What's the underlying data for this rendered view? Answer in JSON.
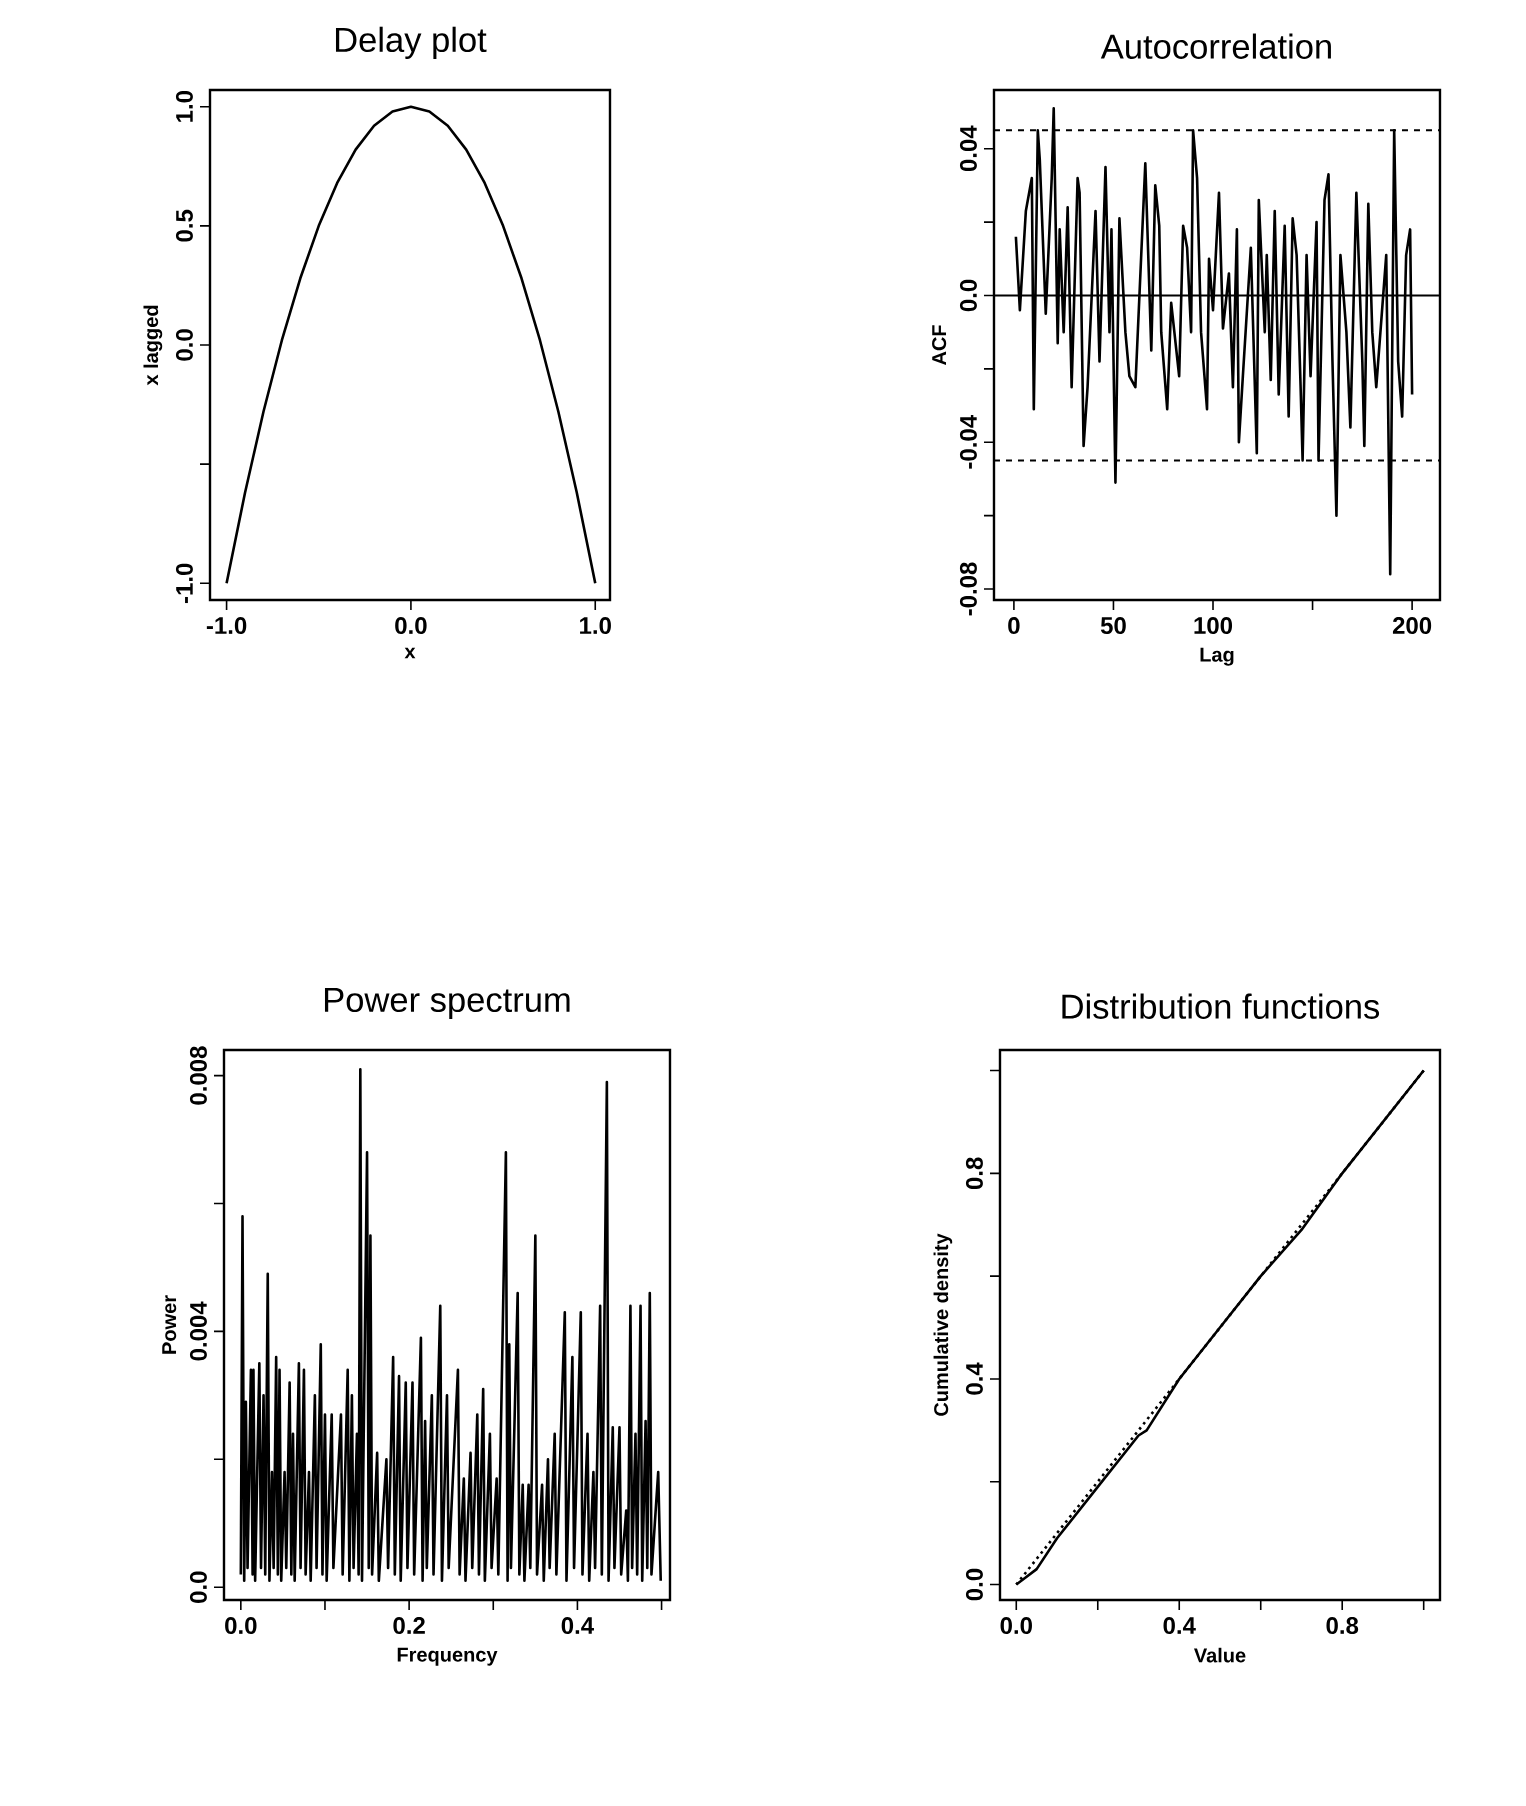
{
  "chart_data": [
    {
      "type": "line",
      "title": "Delay plot",
      "xlabel": "x",
      "ylabel": "x lagged",
      "xlim": [
        -1.09,
        1.08
      ],
      "ylim": [
        -1.07,
        1.07
      ],
      "xticks": [
        {
          "value": -1,
          "label": "-1.0"
        },
        {
          "value": 0,
          "label": "0.0"
        },
        {
          "value": 1,
          "label": "1.0"
        }
      ],
      "yticks": [
        {
          "value": -1,
          "label": "-1.0"
        },
        {
          "value": -0.5,
          "label": null
        },
        {
          "value": 0,
          "label": "0.0"
        },
        {
          "value": 0.5,
          "label": "0.5"
        },
        {
          "value": 1,
          "label": "1.0"
        }
      ],
      "line_style": "solid",
      "series": [
        {
          "color": "#000000",
          "x": [
            -1.0,
            -0.9,
            -0.8,
            -0.7,
            -0.6,
            -0.5,
            -0.4,
            -0.3,
            -0.2,
            -0.1,
            0.0,
            0.1,
            0.2,
            0.3,
            0.4,
            0.5,
            0.6,
            0.7,
            0.8,
            0.9,
            1.0
          ],
          "values": [
            -1.0,
            -0.62,
            -0.28,
            0.02,
            0.28,
            0.5,
            0.68,
            0.82,
            0.92,
            0.98,
            1.0,
            0.98,
            0.92,
            0.82,
            0.68,
            0.5,
            0.28,
            0.02,
            -0.28,
            -0.62,
            -1.0
          ]
        }
      ]
    },
    {
      "type": "line",
      "title": "Autocorrelation",
      "xlabel": "Lag",
      "ylabel": "ACF",
      "xlim": [
        -10,
        214
      ],
      "ylim": [
        -0.083,
        0.056
      ],
      "xticks": [
        0,
        50,
        100,
        {
          "value": 150,
          "label": null
        },
        200
      ],
      "yticks": [
        -0.08,
        {
          "value": -0.06,
          "label": null
        },
        -0.04,
        {
          "value": -0.02,
          "label": null
        },
        {
          "value": 0,
          "label": "0.0"
        },
        {
          "value": 0.02,
          "label": null
        },
        0.04
      ],
      "line_style": "solid",
      "ref_lines": [
        {
          "axis": "y",
          "value": 0.045,
          "line_style": "dashed"
        },
        {
          "axis": "y",
          "value": 0,
          "line_style": "solid"
        },
        {
          "axis": "y",
          "value": -0.045,
          "line_style": "dashed"
        }
      ],
      "series": [
        {
          "color": "#000000",
          "x": [
            1,
            3,
            6,
            9,
            10,
            12,
            13,
            16,
            19,
            20,
            22,
            23,
            25,
            27,
            29,
            32,
            33,
            35,
            37,
            41,
            43,
            46,
            48,
            49,
            51,
            53,
            56,
            58,
            61,
            66,
            69,
            71,
            73,
            74,
            77,
            79,
            83,
            85,
            87,
            89,
            90,
            92,
            94,
            97,
            98,
            100,
            103,
            105,
            108,
            110,
            112,
            113,
            115,
            119,
            122,
            123,
            126,
            127,
            129,
            131,
            133,
            136,
            138,
            140,
            142,
            144,
            145,
            147,
            149,
            152,
            153,
            156,
            158,
            160,
            162,
            164,
            167,
            169,
            172,
            175,
            176,
            178,
            180,
            182,
            187,
            189,
            191,
            193,
            195,
            197,
            199,
            200
          ],
          "values": [
            0.016,
            -0.004,
            0.023,
            0.032,
            -0.031,
            0.045,
            0.037,
            -0.005,
            0.032,
            0.051,
            -0.013,
            0.018,
            -0.01,
            0.024,
            -0.025,
            0.032,
            0.028,
            -0.041,
            -0.025,
            0.023,
            -0.018,
            0.035,
            -0.01,
            0.018,
            -0.051,
            0.021,
            -0.01,
            -0.022,
            -0.025,
            0.036,
            -0.015,
            0.03,
            0.019,
            -0.01,
            -0.031,
            -0.002,
            -0.022,
            0.019,
            0.013,
            -0.01,
            0.045,
            0.032,
            -0.01,
            -0.031,
            0.01,
            -0.004,
            0.028,
            -0.009,
            0.006,
            -0.025,
            0.018,
            -0.04,
            -0.022,
            0.013,
            -0.043,
            0.026,
            -0.01,
            0.011,
            -0.023,
            0.023,
            -0.027,
            0.019,
            -0.033,
            0.021,
            0.011,
            -0.025,
            -0.045,
            0.011,
            -0.022,
            0.02,
            -0.045,
            0.026,
            0.033,
            -0.018,
            -0.06,
            0.011,
            -0.01,
            -0.036,
            0.028,
            -0.018,
            -0.041,
            0.025,
            -0.01,
            -0.025,
            0.011,
            -0.076,
            0.045,
            -0.018,
            -0.033,
            0.011,
            0.018,
            -0.027
          ]
        }
      ]
    },
    {
      "type": "line",
      "title": "Power spectrum",
      "xlabel": "Frequency",
      "ylabel": "Power",
      "xlim": [
        -0.02,
        0.51
      ],
      "ylim": [
        -0.0002,
        0.0084
      ],
      "xticks": [
        {
          "value": 0,
          "label": "0.0"
        },
        {
          "value": 0.1,
          "label": null
        },
        0.2,
        {
          "value": 0.3,
          "label": null
        },
        0.4,
        {
          "value": 0.5,
          "label": null
        }
      ],
      "yticks": [
        {
          "value": 0,
          "label": "0.0"
        },
        {
          "value": 0.002,
          "label": null
        },
        0.004,
        {
          "value": 0.006,
          "label": null
        },
        0.008
      ],
      "line_style": "solid",
      "series": [
        {
          "color": "#000000",
          "x": [
            0.0,
            0.002,
            0.004,
            0.006,
            0.008,
            0.012,
            0.014,
            0.015,
            0.017,
            0.022,
            0.024,
            0.027,
            0.029,
            0.032,
            0.034,
            0.037,
            0.039,
            0.042,
            0.044,
            0.046,
            0.048,
            0.052,
            0.054,
            0.058,
            0.06,
            0.062,
            0.064,
            0.069,
            0.071,
            0.075,
            0.077,
            0.081,
            0.083,
            0.088,
            0.09,
            0.095,
            0.097,
            0.1,
            0.102,
            0.108,
            0.11,
            0.119,
            0.121,
            0.127,
            0.129,
            0.132,
            0.134,
            0.138,
            0.14,
            0.142,
            0.144,
            0.15,
            0.152,
            0.154,
            0.156,
            0.162,
            0.164,
            0.173,
            0.175,
            0.181,
            0.183,
            0.188,
            0.19,
            0.196,
            0.198,
            0.204,
            0.206,
            0.214,
            0.216,
            0.219,
            0.221,
            0.227,
            0.229,
            0.237,
            0.239,
            0.245,
            0.247,
            0.258,
            0.26,
            0.265,
            0.267,
            0.273,
            0.275,
            0.281,
            0.283,
            0.288,
            0.29,
            0.296,
            0.298,
            0.304,
            0.306,
            0.315,
            0.317,
            0.319,
            0.321,
            0.329,
            0.331,
            0.335,
            0.337,
            0.342,
            0.344,
            0.35,
            0.352,
            0.358,
            0.36,
            0.365,
            0.367,
            0.373,
            0.375,
            0.385,
            0.387,
            0.394,
            0.396,
            0.404,
            0.406,
            0.412,
            0.414,
            0.419,
            0.421,
            0.427,
            0.429,
            0.435,
            0.437,
            0.442,
            0.444,
            0.45,
            0.452,
            0.458,
            0.46,
            0.463,
            0.465,
            0.469,
            0.471,
            0.475,
            0.477,
            0.481,
            0.483,
            0.486,
            0.488,
            0.496,
            0.499
          ],
          "values": [
            0.0002,
            0.0058,
            0.0001,
            0.0029,
            0.0003,
            0.0034,
            0.0002,
            0.0034,
            0.0001,
            0.0035,
            0.0003,
            0.003,
            0.0002,
            0.0049,
            0.0001,
            0.0018,
            0.0003,
            0.0036,
            0.0002,
            0.0034,
            0.0001,
            0.0018,
            0.0003,
            0.0032,
            0.0002,
            0.0024,
            0.0001,
            0.0035,
            0.0003,
            0.0034,
            0.0002,
            0.0018,
            0.0001,
            0.003,
            0.0003,
            0.0038,
            0.0002,
            0.0027,
            0.0001,
            0.0027,
            0.0003,
            0.0027,
            0.0002,
            0.0034,
            0.0001,
            0.003,
            0.0003,
            0.0024,
            0.0002,
            0.0081,
            0.0001,
            0.0068,
            0.0003,
            0.0055,
            0.0002,
            0.0021,
            0.0001,
            0.002,
            0.0003,
            0.0036,
            0.0002,
            0.0033,
            0.0001,
            0.0032,
            0.0003,
            0.0032,
            0.0002,
            0.0039,
            0.0001,
            0.0026,
            0.0003,
            0.003,
            0.0002,
            0.0044,
            0.0001,
            0.003,
            0.0003,
            0.0034,
            0.0002,
            0.0017,
            0.0001,
            0.0021,
            0.0003,
            0.0027,
            0.0002,
            0.0031,
            0.0001,
            0.0024,
            0.0003,
            0.0017,
            0.0002,
            0.0068,
            0.0001,
            0.0038,
            0.0003,
            0.0046,
            0.0002,
            0.0016,
            0.0001,
            0.0016,
            0.0003,
            0.0055,
            0.0002,
            0.0016,
            0.0001,
            0.002,
            0.0003,
            0.0024,
            0.0002,
            0.0043,
            0.0001,
            0.0036,
            0.0003,
            0.0043,
            0.0002,
            0.0024,
            0.0001,
            0.0018,
            0.0003,
            0.0044,
            0.0002,
            0.0079,
            0.0001,
            0.0025,
            0.0003,
            0.0025,
            0.0002,
            0.0012,
            0.0001,
            0.0044,
            0.0003,
            0.0024,
            0.0002,
            0.0044,
            0.0001,
            0.0026,
            0.0003,
            0.0046,
            0.0002,
            0.0018,
            0.0001
          ]
        }
      ]
    },
    {
      "type": "line",
      "title": "Distribution functions",
      "xlabel": "Value",
      "ylabel": "Cumulative density",
      "xlim": [
        -0.04,
        1.04
      ],
      "ylim": [
        -0.03,
        1.04
      ],
      "xticks": [
        {
          "value": 0,
          "label": "0.0"
        },
        {
          "value": 0.2,
          "label": null
        },
        0.4,
        {
          "value": 0.6,
          "label": null
        },
        0.8,
        {
          "value": 1.0,
          "label": null
        }
      ],
      "yticks": [
        {
          "value": 0,
          "label": "0.0"
        },
        {
          "value": 0.2,
          "label": null
        },
        0.4,
        {
          "value": 0.6,
          "label": null
        },
        0.8,
        {
          "value": 1.0,
          "label": null
        }
      ],
      "series": [
        {
          "color": "#000000",
          "line_style": "solid",
          "x": [
            0.0,
            0.05,
            0.1,
            0.2,
            0.3,
            0.32,
            0.4,
            0.5,
            0.6,
            0.7,
            0.8,
            0.9,
            1.0
          ],
          "values": [
            0.0,
            0.03,
            0.09,
            0.19,
            0.29,
            0.3,
            0.4,
            0.5,
            0.6,
            0.69,
            0.8,
            0.9,
            1.0
          ]
        },
        {
          "color": "#000000",
          "line_style": "dotted",
          "x": [
            0.0,
            1.0
          ],
          "values": [
            0.0,
            1.0
          ]
        }
      ]
    }
  ]
}
